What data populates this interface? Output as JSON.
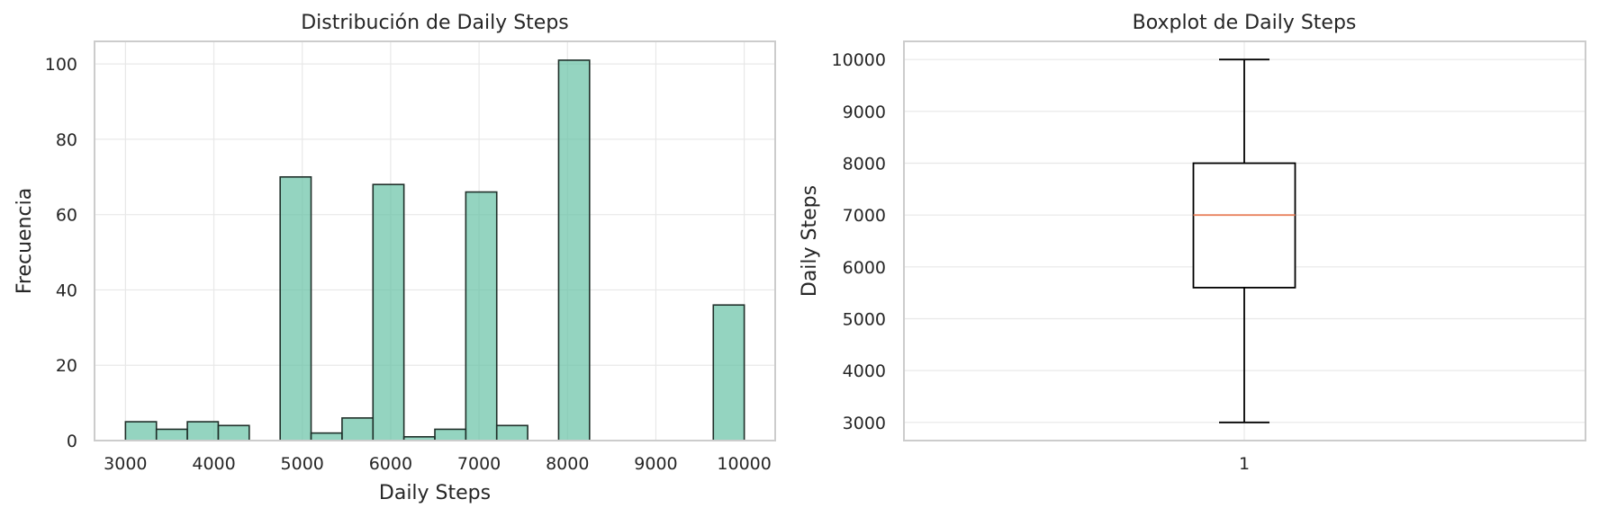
{
  "chart_data": [
    {
      "type": "bar",
      "title": "Distribución de Daily Steps",
      "xlabel": "Daily Steps",
      "ylabel": "Frecuencia",
      "xlim": [
        2650,
        10350
      ],
      "ylim": [
        0,
        106
      ],
      "xticks": [
        3000,
        4000,
        5000,
        6000,
        7000,
        8000,
        9000,
        10000
      ],
      "yticks": [
        0,
        20,
        40,
        60,
        80,
        100
      ],
      "grid": true,
      "bar_color": "#66c2a5",
      "bins": [
        {
          "x0": 3000,
          "x1": 3350,
          "count": 5
        },
        {
          "x0": 3350,
          "x1": 3700,
          "count": 3
        },
        {
          "x0": 3700,
          "x1": 4050,
          "count": 5
        },
        {
          "x0": 4050,
          "x1": 4400,
          "count": 4
        },
        {
          "x0": 4400,
          "x1": 4750,
          "count": 0
        },
        {
          "x0": 4750,
          "x1": 5100,
          "count": 70
        },
        {
          "x0": 5100,
          "x1": 5450,
          "count": 2
        },
        {
          "x0": 5450,
          "x1": 5800,
          "count": 6
        },
        {
          "x0": 5800,
          "x1": 6150,
          "count": 68
        },
        {
          "x0": 6150,
          "x1": 6500,
          "count": 1
        },
        {
          "x0": 6500,
          "x1": 6850,
          "count": 3
        },
        {
          "x0": 6850,
          "x1": 7200,
          "count": 66
        },
        {
          "x0": 7200,
          "x1": 7550,
          "count": 4
        },
        {
          "x0": 7550,
          "x1": 7900,
          "count": 0
        },
        {
          "x0": 7900,
          "x1": 8250,
          "count": 101
        },
        {
          "x0": 8250,
          "x1": 8600,
          "count": 0
        },
        {
          "x0": 8600,
          "x1": 8950,
          "count": 0
        },
        {
          "x0": 8950,
          "x1": 9300,
          "count": 0
        },
        {
          "x0": 9300,
          "x1": 9650,
          "count": 0
        },
        {
          "x0": 9650,
          "x1": 10000,
          "count": 36
        }
      ]
    },
    {
      "type": "boxplot",
      "title": "Boxplot de Daily Steps",
      "xlabel": "",
      "ylabel": "Daily Steps",
      "ylim": [
        2650,
        10350
      ],
      "yticks": [
        3000,
        4000,
        5000,
        6000,
        7000,
        8000,
        9000,
        10000
      ],
      "xticks": [
        "1"
      ],
      "grid": true,
      "median_color": "#e8825e",
      "box": {
        "whisker_low": 3000,
        "q1": 5600,
        "median": 7000,
        "q3": 8000,
        "whisker_high": 10000
      }
    }
  ]
}
